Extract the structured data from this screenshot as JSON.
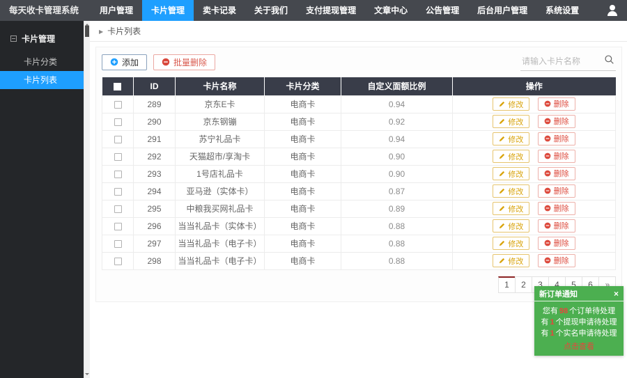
{
  "app": {
    "title": "每天收卡管理系统"
  },
  "navbar": {
    "items": [
      {
        "label": "用户管理",
        "active": false
      },
      {
        "label": "卡片管理",
        "active": true
      },
      {
        "label": "卖卡记录",
        "active": false
      },
      {
        "label": "关于我们",
        "active": false
      },
      {
        "label": "支付提现管理",
        "active": false
      },
      {
        "label": "文章中心",
        "active": false
      },
      {
        "label": "公告管理",
        "active": false
      },
      {
        "label": "后台用户管理",
        "active": false
      },
      {
        "label": "系统设置",
        "active": false
      }
    ]
  },
  "sidebar": {
    "group_label": "卡片管理",
    "items": [
      {
        "label": "卡片分类",
        "active": false
      },
      {
        "label": "卡片列表",
        "active": true
      }
    ]
  },
  "breadcrumb": {
    "label": "卡片列表"
  },
  "toolbar": {
    "add_label": "添加",
    "batch_delete_label": "批量删除",
    "search_placeholder": "请输入卡片名称"
  },
  "table": {
    "headers": [
      "ID",
      "卡片名称",
      "卡片分类",
      "自定义面额比例",
      "操作"
    ],
    "edit_label": "修改",
    "delete_label": "删除",
    "rows": [
      {
        "id": "289",
        "name": "京东E卡",
        "category": "电商卡",
        "ratio": "0.94"
      },
      {
        "id": "290",
        "name": "京东钢镚",
        "category": "电商卡",
        "ratio": "0.92"
      },
      {
        "id": "291",
        "name": "苏宁礼品卡",
        "category": "电商卡",
        "ratio": "0.94"
      },
      {
        "id": "292",
        "name": "天猫超市/享淘卡",
        "category": "电商卡",
        "ratio": "0.90"
      },
      {
        "id": "293",
        "name": "1号店礼品卡",
        "category": "电商卡",
        "ratio": "0.90"
      },
      {
        "id": "294",
        "name": "亚马逊（实体卡）",
        "category": "电商卡",
        "ratio": "0.87"
      },
      {
        "id": "295",
        "name": "中粮我买网礼品卡",
        "category": "电商卡",
        "ratio": "0.89"
      },
      {
        "id": "296",
        "name": "当当礼品卡（实体卡）",
        "category": "电商卡",
        "ratio": "0.88"
      },
      {
        "id": "297",
        "name": "当当礼品卡（电子卡）",
        "category": "电商卡",
        "ratio": "0.88"
      },
      {
        "id": "298",
        "name": "当当礼品卡（电子卡）",
        "category": "电商卡",
        "ratio": "0.88"
      }
    ]
  },
  "pagination": {
    "pages": [
      "1",
      "2",
      "3",
      "4",
      "5",
      "6"
    ],
    "active": "1",
    "next_label": "»"
  },
  "notification": {
    "title": "新订单通知",
    "close_label": "×",
    "lines": [
      {
        "prefix": "您有",
        "count": "98",
        "suffix": "个订单待处理"
      },
      {
        "prefix": "有",
        "count": "1",
        "suffix": "个提现申请待处理"
      },
      {
        "prefix": "有",
        "count": "1",
        "suffix": "个实名申请待处理"
      }
    ],
    "link_label": "点击查看"
  },
  "colors": {
    "accent": "#1E9FFF",
    "danger": "#E8453C",
    "warning": "#D9A40D",
    "table_header": "#393D49",
    "navbar_bg": "#45484E",
    "sidebar_bg": "#242629",
    "notify_green": "#4CAF50",
    "page_active_bar": "#8B2222"
  }
}
